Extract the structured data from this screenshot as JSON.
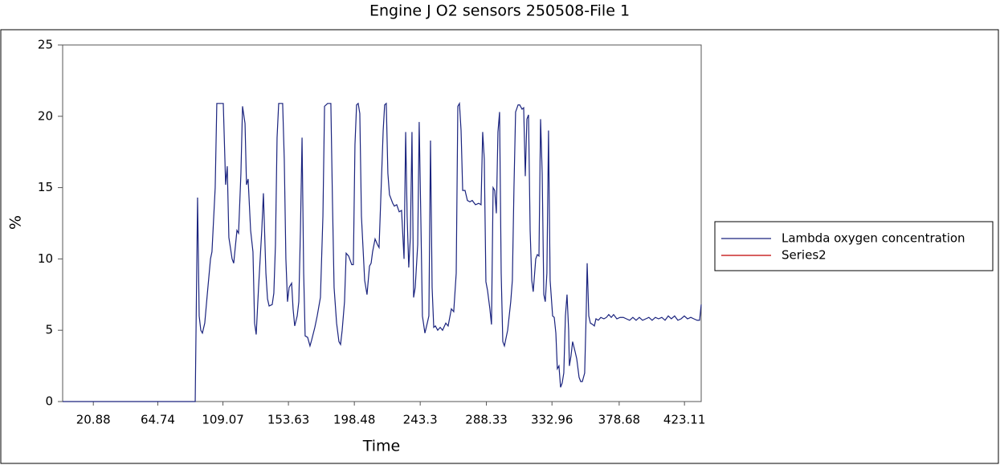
{
  "chart_data": {
    "type": "line",
    "title": "Engine J  O2 sensors 250508-File 1",
    "x_label": "Time",
    "y_label": "%",
    "xlim": [
      0,
      434.5
    ],
    "xticks": [
      20.88,
      64.74,
      109.07,
      153.63,
      198.48,
      243.3,
      288.33,
      332.96,
      378.68,
      423.11
    ],
    "ylim": [
      0,
      25
    ],
    "yticks": [
      0,
      5,
      10,
      15,
      20,
      25
    ],
    "legend": "right",
    "series": [
      {
        "name": "Lambda oxygen concentration",
        "color": "#1a237e",
        "x": [
          0,
          90.2,
          91.8,
          92.9,
          94.0,
          95.1,
          96.7,
          98.4,
          100.6,
          101.6,
          103.8,
          104.9,
          109.3,
          110.9,
          112.0,
          113.1,
          115.3,
          116.4,
          118.6,
          119.7,
          121.3,
          122.4,
          124.1,
          125.1,
          126.2,
          127.9,
          129.5,
          130.6,
          131.7,
          133.3,
          135.5,
          136.6,
          138.3,
          139.4,
          140.5,
          142.6,
          143.7,
          144.8,
          145.9,
          147.0,
          149.7,
          150.8,
          151.9,
          153.0,
          154.1,
          155.8,
          156.8,
          157.9,
          159.6,
          160.7,
          161.8,
          162.9,
          164.0,
          165.0,
          166.7,
          168.3,
          169.4,
          171.6,
          173.2,
          175.4,
          177.1,
          178.2,
          180.3,
          182.5,
          183.6,
          184.7,
          186.4,
          188.0,
          189.1,
          190.2,
          191.8,
          192.9,
          194.6,
          196.7,
          197.8,
          198.9,
          200.0,
          201.1,
          202.2,
          203.3,
          205.5,
          207.1,
          208.8,
          209.9,
          210.9,
          212.6,
          214.2,
          215.3,
          216.4,
          218.1,
          219.1,
          220.2,
          221.3,
          222.4,
          224.6,
          225.7,
          227.3,
          229.0,
          230.6,
          232.3,
          233.4,
          234.4,
          235.5,
          236.6,
          237.7,
          238.8,
          239.9,
          241.6,
          242.6,
          243.7,
          244.8,
          246.5,
          248.1,
          249.2,
          250.3,
          251.4,
          252.5,
          253.6,
          255.2,
          256.9,
          258.5,
          260.7,
          262.3,
          264.5,
          266.1,
          267.8,
          268.9,
          270.0,
          271.1,
          272.2,
          273.8,
          275.4,
          277.1,
          278.7,
          280.9,
          283.1,
          284.7,
          285.8,
          286.9,
          288.0,
          289.1,
          290.7,
          291.8,
          292.9,
          294.0,
          295.1,
          296.2,
          297.3,
          298.4,
          299.5,
          300.6,
          302.8,
          304.9,
          306.0,
          307.1,
          308.2,
          309.9,
          311.0,
          312.6,
          313.7,
          314.8,
          315.9,
          317.0,
          318.1,
          319.2,
          320.2,
          321.9,
          323.0,
          324.1,
          325.2,
          326.3,
          327.4,
          328.4,
          329.5,
          330.6,
          331.7,
          333.4,
          334.5,
          335.6,
          336.6,
          337.7,
          338.8,
          339.9,
          341.0,
          342.1,
          343.2,
          344.3,
          344.8,
          345.9,
          347.0,
          348.7,
          349.8,
          351.4,
          352.5,
          353.6,
          355.2,
          356.3,
          356.9,
          358.0,
          359.1,
          360.7,
          361.8,
          362.9,
          364.5,
          366.2,
          368.3,
          370.0,
          371.6,
          373.3,
          374.9,
          377.1,
          379.3,
          381.5,
          383.6,
          385.8,
          388.0,
          390.2,
          392.4,
          394.6,
          396.8,
          398.9,
          401.1,
          403.3,
          405.5,
          407.7,
          409.9,
          412.1,
          414.2,
          416.4,
          418.6,
          420.8,
          423.0,
          425.2,
          427.4,
          429.5,
          431.7,
          433.4,
          434.5
        ],
        "values": [
          0,
          0,
          14.3,
          6,
          5,
          4.8,
          5.5,
          7.5,
          10,
          10.5,
          15,
          20.9,
          20.9,
          15.2,
          16.5,
          11.5,
          10,
          9.7,
          12,
          11.8,
          16,
          20.7,
          19.5,
          15.2,
          15.6,
          12,
          10.5,
          5.5,
          4.7,
          8,
          12,
          14.6,
          9,
          7.2,
          6.7,
          6.8,
          7.6,
          11,
          18.5,
          20.9,
          20.9,
          17,
          10,
          7,
          8,
          8.3,
          6.5,
          5.3,
          6,
          7,
          12,
          18.5,
          9,
          4.6,
          4.5,
          3.9,
          4.3,
          5.2,
          6,
          7.3,
          13,
          20.7,
          20.9,
          20.9,
          14,
          8,
          5.5,
          4.2,
          4,
          5,
          7,
          10.4,
          10.2,
          9.6,
          9.6,
          18,
          20.8,
          20.9,
          20.2,
          13,
          8.5,
          7.5,
          9.5,
          9.7,
          10.5,
          11.4,
          11,
          10.8,
          14,
          19,
          20.8,
          20.9,
          16,
          14.5,
          13.9,
          13.7,
          13.8,
          13.3,
          13.4,
          10,
          18.9,
          13,
          9.4,
          11.5,
          18.9,
          7.3,
          8,
          11,
          19.6,
          13,
          6,
          4.8,
          5.5,
          6,
          18.3,
          8,
          5.2,
          5.3,
          5,
          5.2,
          5,
          5.5,
          5.3,
          6.5,
          6.3,
          9,
          20.7,
          20.9,
          19,
          14.8,
          14.8,
          14.1,
          14,
          14.1,
          13.8,
          13.9,
          13.8,
          18.9,
          17,
          8.4,
          7.8,
          6.5,
          5.4,
          15,
          14.8,
          13.2,
          18.9,
          20.3,
          9,
          4.2,
          3.9,
          5,
          7,
          8.5,
          15,
          20.3,
          20.8,
          20.8,
          20.5,
          20.6,
          15.8,
          19.8,
          20.1,
          12,
          8.5,
          7.7,
          10,
          10.3,
          10.2,
          19.8,
          16,
          7.5,
          7,
          9,
          19,
          8.5,
          6,
          5.9,
          4.8,
          2.3,
          2.5,
          1,
          1.3,
          2,
          6,
          7.5,
          5,
          2.5,
          3.2,
          4.2,
          3.5,
          3,
          1.7,
          1.4,
          1.4,
          2,
          6.5,
          9.7,
          6,
          5.5,
          5.4,
          5.3,
          5.8,
          5.7,
          5.9,
          5.8,
          5.9,
          6.1,
          5.9,
          6.1,
          5.8,
          5.9,
          5.9,
          5.8,
          5.7,
          5.9,
          5.7,
          5.9,
          5.7,
          5.8,
          5.9,
          5.7,
          5.9,
          5.8,
          5.9,
          5.7,
          6,
          5.8,
          6,
          5.7,
          5.8,
          6,
          5.8,
          5.9,
          5.8,
          5.7,
          5.7,
          6.8
        ]
      },
      {
        "name": "Series2",
        "color": "#c00000",
        "x": [],
        "values": []
      }
    ]
  }
}
